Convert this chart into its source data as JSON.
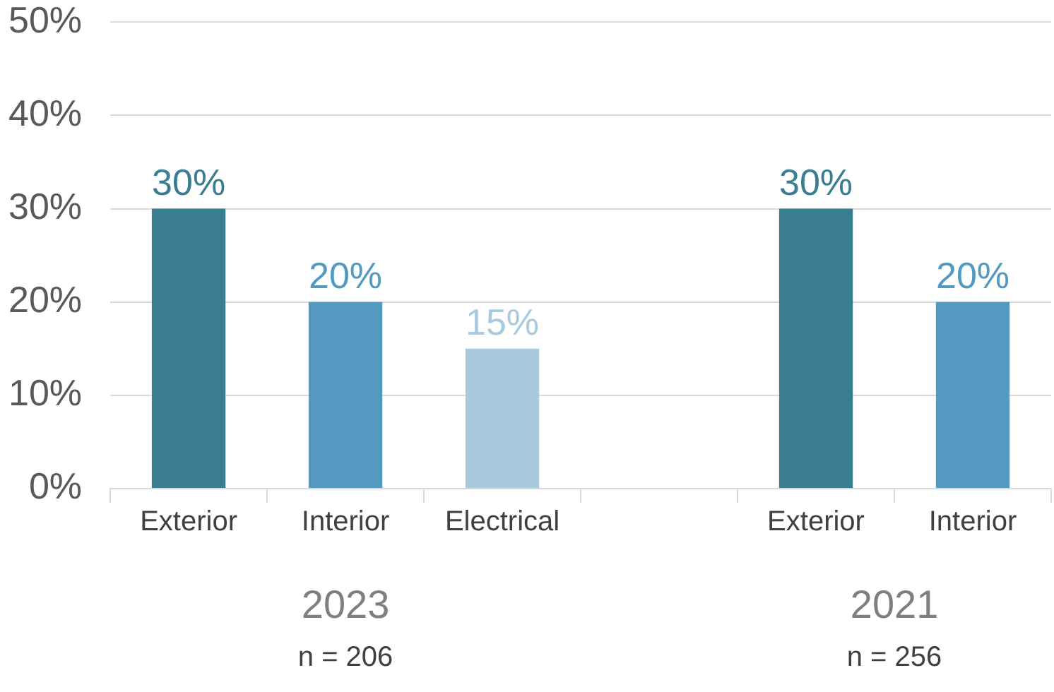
{
  "chart_data": {
    "type": "bar",
    "categories": [
      "Exterior",
      "Interior",
      "Electrical",
      null,
      "Exterior",
      "Interior"
    ],
    "series": [
      {
        "colors": [
          "#3a7d93",
          "#5499c0",
          "#a9cadc",
          null,
          "#3a7d93",
          "#5499c0"
        ],
        "values": [
          30,
          20,
          15,
          null,
          30,
          20
        ],
        "value_labels": [
          "30%",
          "20%",
          "15%",
          null,
          "30%",
          "20%"
        ]
      }
    ],
    "ylim": [
      0,
      50
    ],
    "yticks": [
      {
        "value": 0,
        "label": "0%"
      },
      {
        "value": 10,
        "label": "10%"
      },
      {
        "value": 20,
        "label": "20%"
      },
      {
        "value": 30,
        "label": "30%"
      },
      {
        "value": 40,
        "label": "40%"
      },
      {
        "value": 50,
        "label": "50%"
      }
    ],
    "grid": "y",
    "annotations": [
      "2023",
      "n = 206",
      "2021",
      "n = 256"
    ]
  }
}
